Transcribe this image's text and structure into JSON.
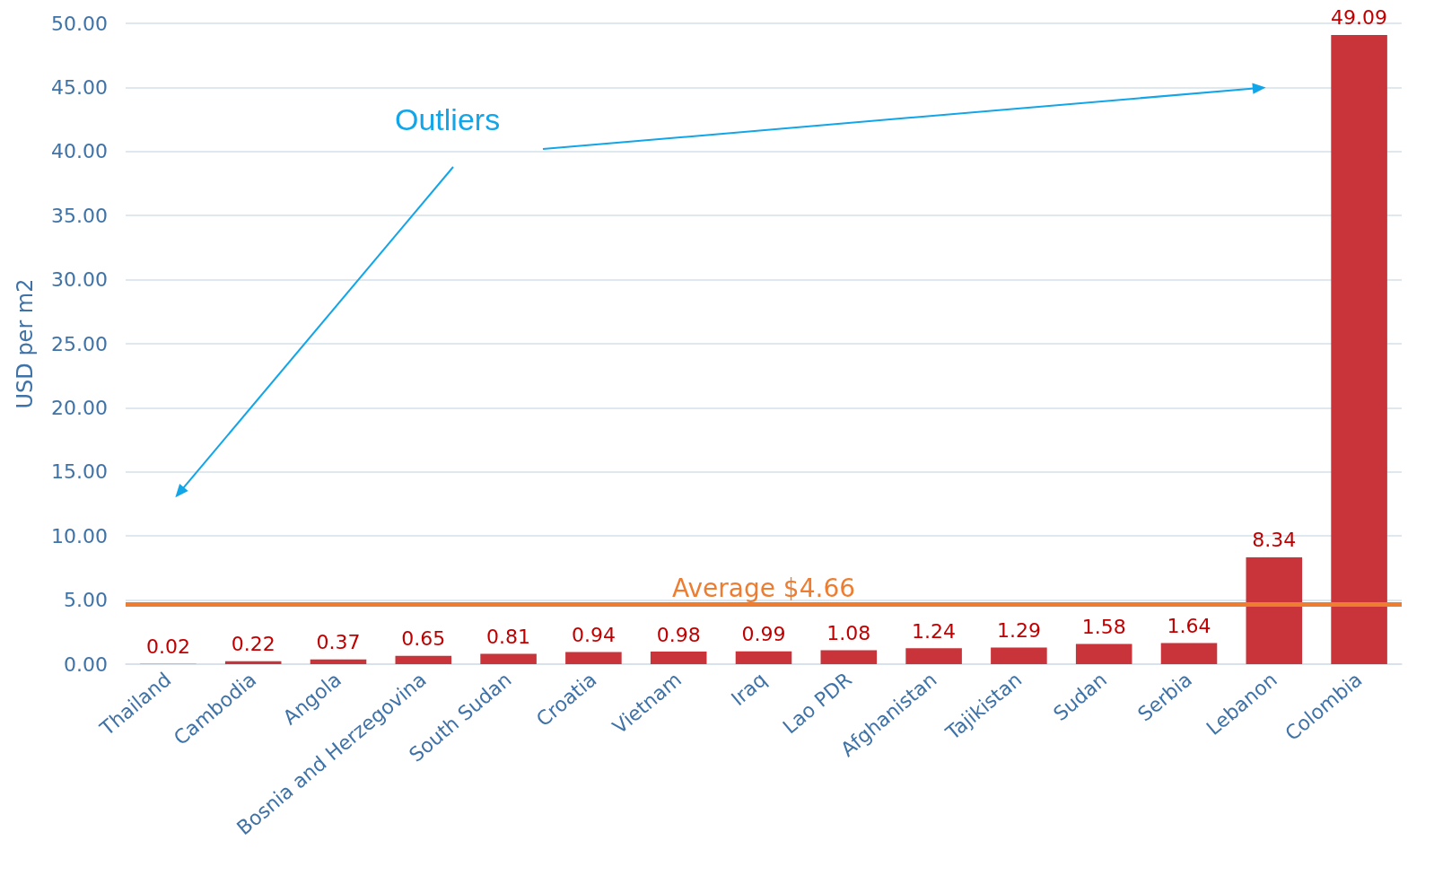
{
  "chart_data": {
    "type": "bar",
    "ylabel": "USD per m2",
    "categories": [
      "Thailand",
      "Cambodia",
      "Angola",
      "Bosnia and Herzegovina",
      "South Sudan",
      "Croatia",
      "Vietnam",
      "Iraq",
      "Lao PDR",
      "Afghanistan",
      "Tajikistan",
      "Sudan",
      "Serbia",
      "Lebanon",
      "Colombia"
    ],
    "values": [
      0.02,
      0.22,
      0.37,
      0.65,
      0.81,
      0.94,
      0.98,
      0.99,
      1.08,
      1.24,
      1.29,
      1.58,
      1.64,
      8.34,
      49.09
    ],
    "color": "#c8343a",
    "ylim": [
      0,
      50
    ],
    "yticks": [
      {
        "value": 0,
        "label": "0.00"
      },
      {
        "value": 5,
        "label": "5.00"
      },
      {
        "value": 10,
        "label": "10.00"
      },
      {
        "value": 15,
        "label": "15.00"
      },
      {
        "value": 20,
        "label": "20.00"
      },
      {
        "value": 25,
        "label": "25.00"
      },
      {
        "value": 30,
        "label": "30.00"
      },
      {
        "value": 35,
        "label": "35.00"
      },
      {
        "value": 40,
        "label": "40.00"
      },
      {
        "value": 45,
        "label": "45.00"
      },
      {
        "value": 50,
        "label": "50.00"
      }
    ],
    "grid": "y",
    "data_labels": true,
    "ref_lines": [
      {
        "axis": "y",
        "value": 4.66,
        "label": "Average $4.66",
        "color": "#ed7d31"
      }
    ],
    "annotations": [
      "Outliers"
    ]
  }
}
